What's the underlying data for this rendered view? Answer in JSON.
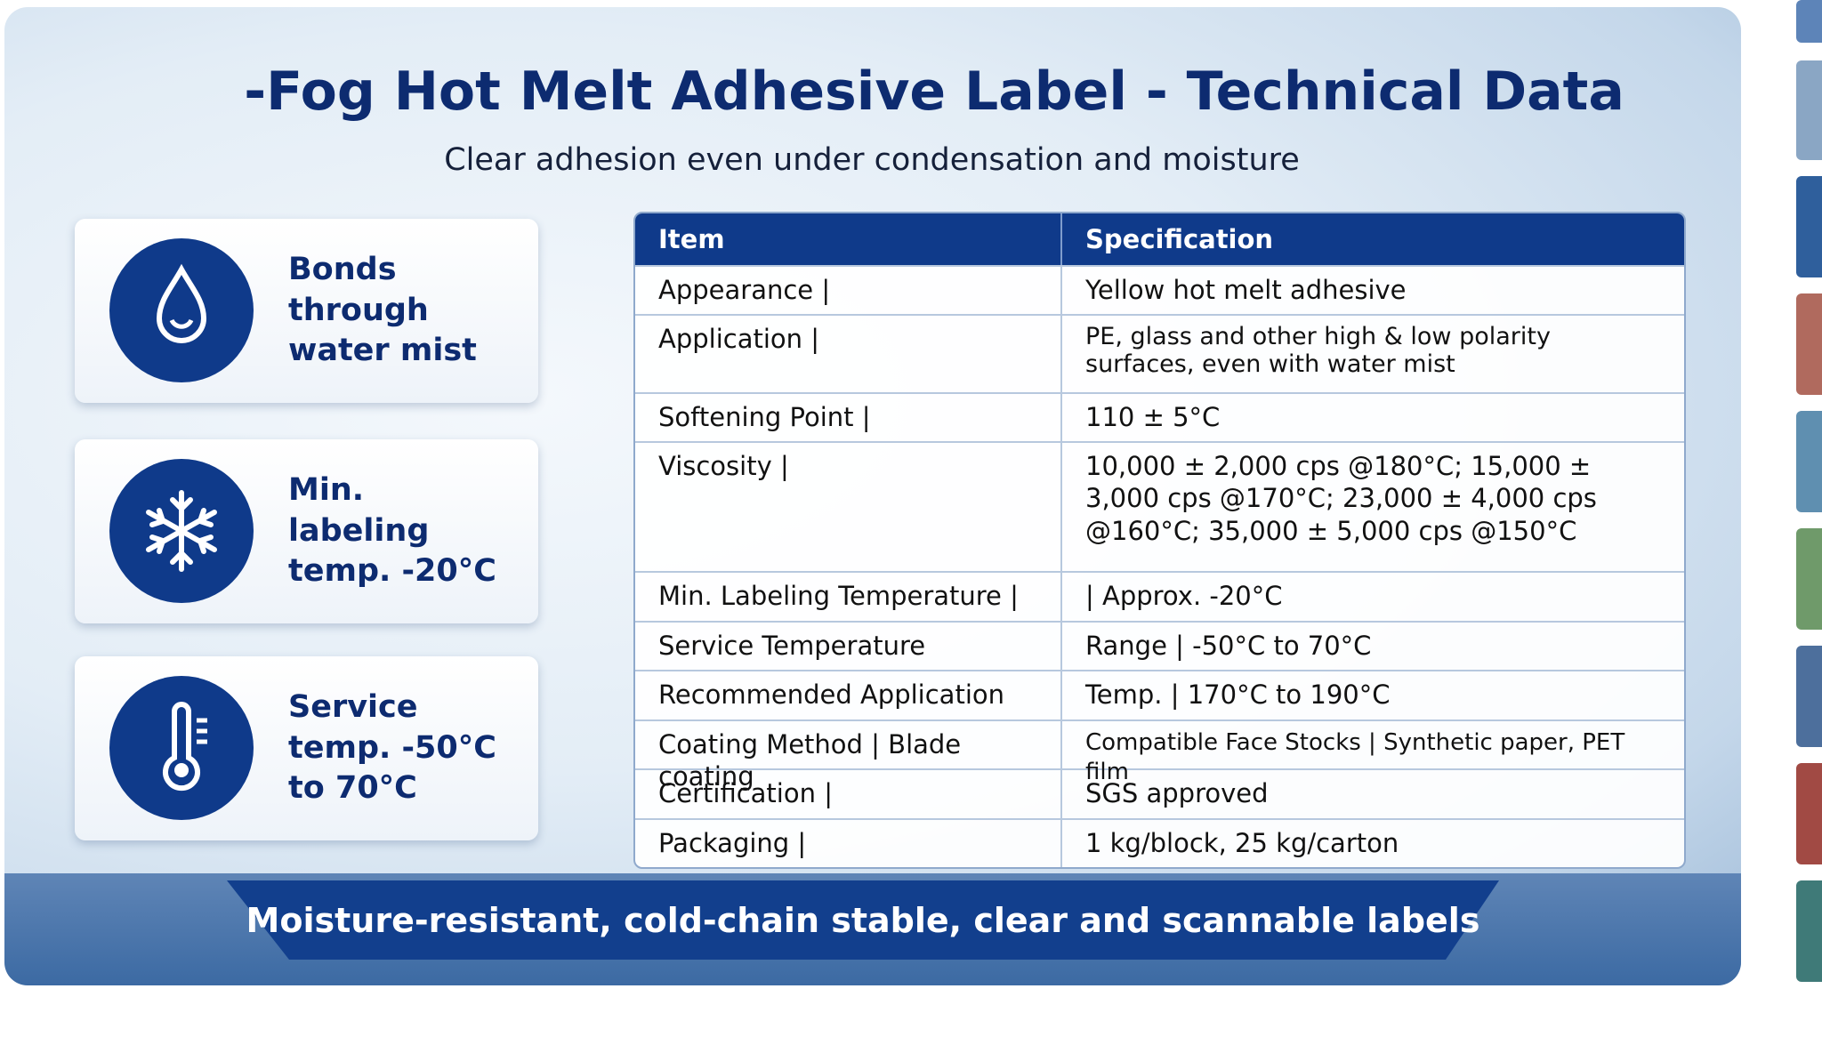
{
  "header": {
    "title": "-Fog Hot Melt Adhesive Label - Technical Data",
    "subtitle": "Clear adhesion even under condensation and moisture"
  },
  "features": [
    {
      "label": "Bonds through water mist"
    },
    {
      "label": "Min. labeling temp. -20°C"
    },
    {
      "label": "Service temp. -50°C to 70°C"
    }
  ],
  "table": {
    "columns": [
      "Item",
      "Specification"
    ],
    "rows": [
      [
        "Appearance |",
        "Yellow hot melt adhesive"
      ],
      [
        "Application |",
        "PE, glass and other high & low polarity surfaces, even with water mist"
      ],
      [
        "Softening Point |",
        "110 ± 5°C"
      ],
      [
        "Viscosity |",
        "10,000 ± 2,000 cps @180°C; 15,000 ± 3,000 cps @170°C;      23,000 ± 4,000 cps @160°C; 35,000 ± 5,000 cps @150°C"
      ],
      [
        "Min. Labeling Temperature |",
        "| Approx. -20°C"
      ],
      [
        "Service Temperature",
        "Range | -50°C to 70°C"
      ],
      [
        "Recommended Application",
        "Temp. | 170°C to 190°C"
      ],
      [
        "Coating Method | Blade coating",
        "Compatible Face Stocks | Synthetic paper, PET film"
      ],
      [
        "Certification |",
        "SGS approved"
      ],
      [
        "Packaging |",
        "1 kg/block, 25 kg/carton"
      ]
    ]
  },
  "footer": {
    "banner": "Moisture-resistant, cold-chain stable, clear and scannable labels"
  }
}
